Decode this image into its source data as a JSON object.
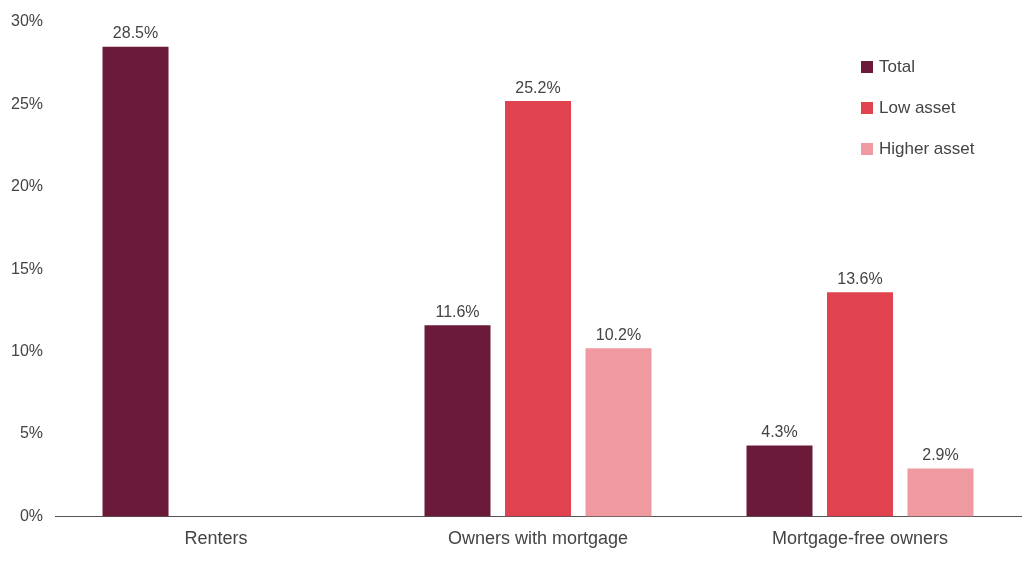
{
  "chart_data": {
    "type": "bar",
    "categories": [
      "Renters",
      "Owners with mortgage",
      "Mortgage-free owners"
    ],
    "series": [
      {
        "name": "Total",
        "color": "#6b1a3a",
        "values": [
          28.5,
          11.6,
          4.3
        ],
        "value_labels": [
          "28.5%",
          "11.6%",
          "4.3%"
        ]
      },
      {
        "name": "Low asset",
        "color": "#e0434f",
        "values": [
          null,
          25.2,
          13.6
        ],
        "value_labels": [
          null,
          "25.2%",
          "13.6%"
        ]
      },
      {
        "name": "Higher asset",
        "color": "#ee9aa0",
        "values": [
          null,
          10.2,
          2.9
        ],
        "value_labels": [
          null,
          "10.2%",
          "2.9%"
        ]
      }
    ],
    "ylim": [
      0,
      30
    ],
    "yticks": [
      {
        "value": 0,
        "label": "0%"
      },
      {
        "value": 5,
        "label": "5%"
      },
      {
        "value": 10,
        "label": "10%"
      },
      {
        "value": 15,
        "label": "15%"
      },
      {
        "value": 20,
        "label": "20%"
      },
      {
        "value": 25,
        "label": "25%"
      },
      {
        "value": 30,
        "label": "30%"
      }
    ],
    "grid": false,
    "legend": "top right"
  }
}
